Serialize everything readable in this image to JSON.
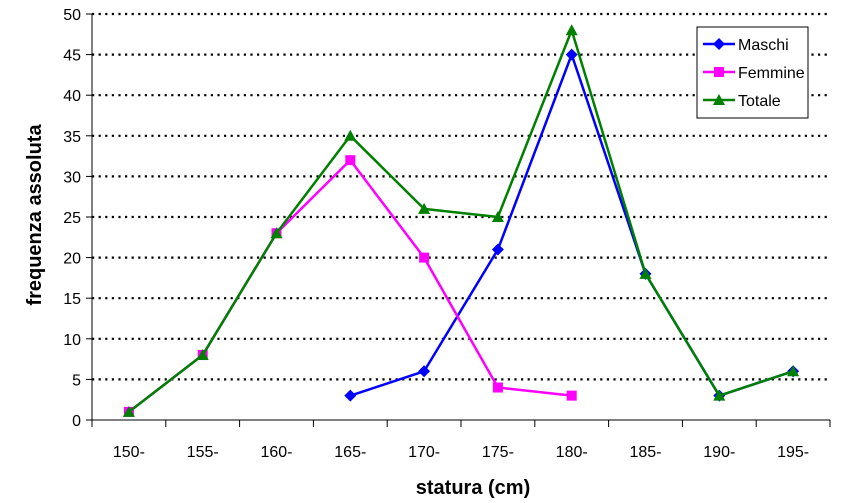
{
  "chart_data": {
    "type": "line",
    "categories": [
      "150-",
      "155-",
      "160-",
      "165-",
      "170-",
      "175-",
      "180-",
      "185-",
      "190-",
      "195-"
    ],
    "series": [
      {
        "name": "Maschi",
        "values": [
          null,
          null,
          null,
          3,
          6,
          21,
          45,
          18,
          3,
          6
        ],
        "color": "#0000FF",
        "marker": "diamond"
      },
      {
        "name": "Femmine",
        "values": [
          1,
          8,
          23,
          32,
          20,
          4,
          3,
          null,
          null,
          null
        ],
        "color": "#FF00FF",
        "marker": "square"
      },
      {
        "name": "Totale",
        "values": [
          1,
          8,
          23,
          35,
          26,
          25,
          48,
          18,
          3,
          6
        ],
        "color": "#008000",
        "marker": "triangle"
      }
    ],
    "xlabel": "statura (cm)",
    "ylabel": "frequenza assoluta",
    "ylim": [
      0,
      50
    ],
    "yticks": [
      "0",
      "5",
      "10",
      "15",
      "20",
      "25",
      "30",
      "35",
      "40",
      "45",
      "50"
    ],
    "grid": "dotted horizontal",
    "legend": "top-right"
  }
}
